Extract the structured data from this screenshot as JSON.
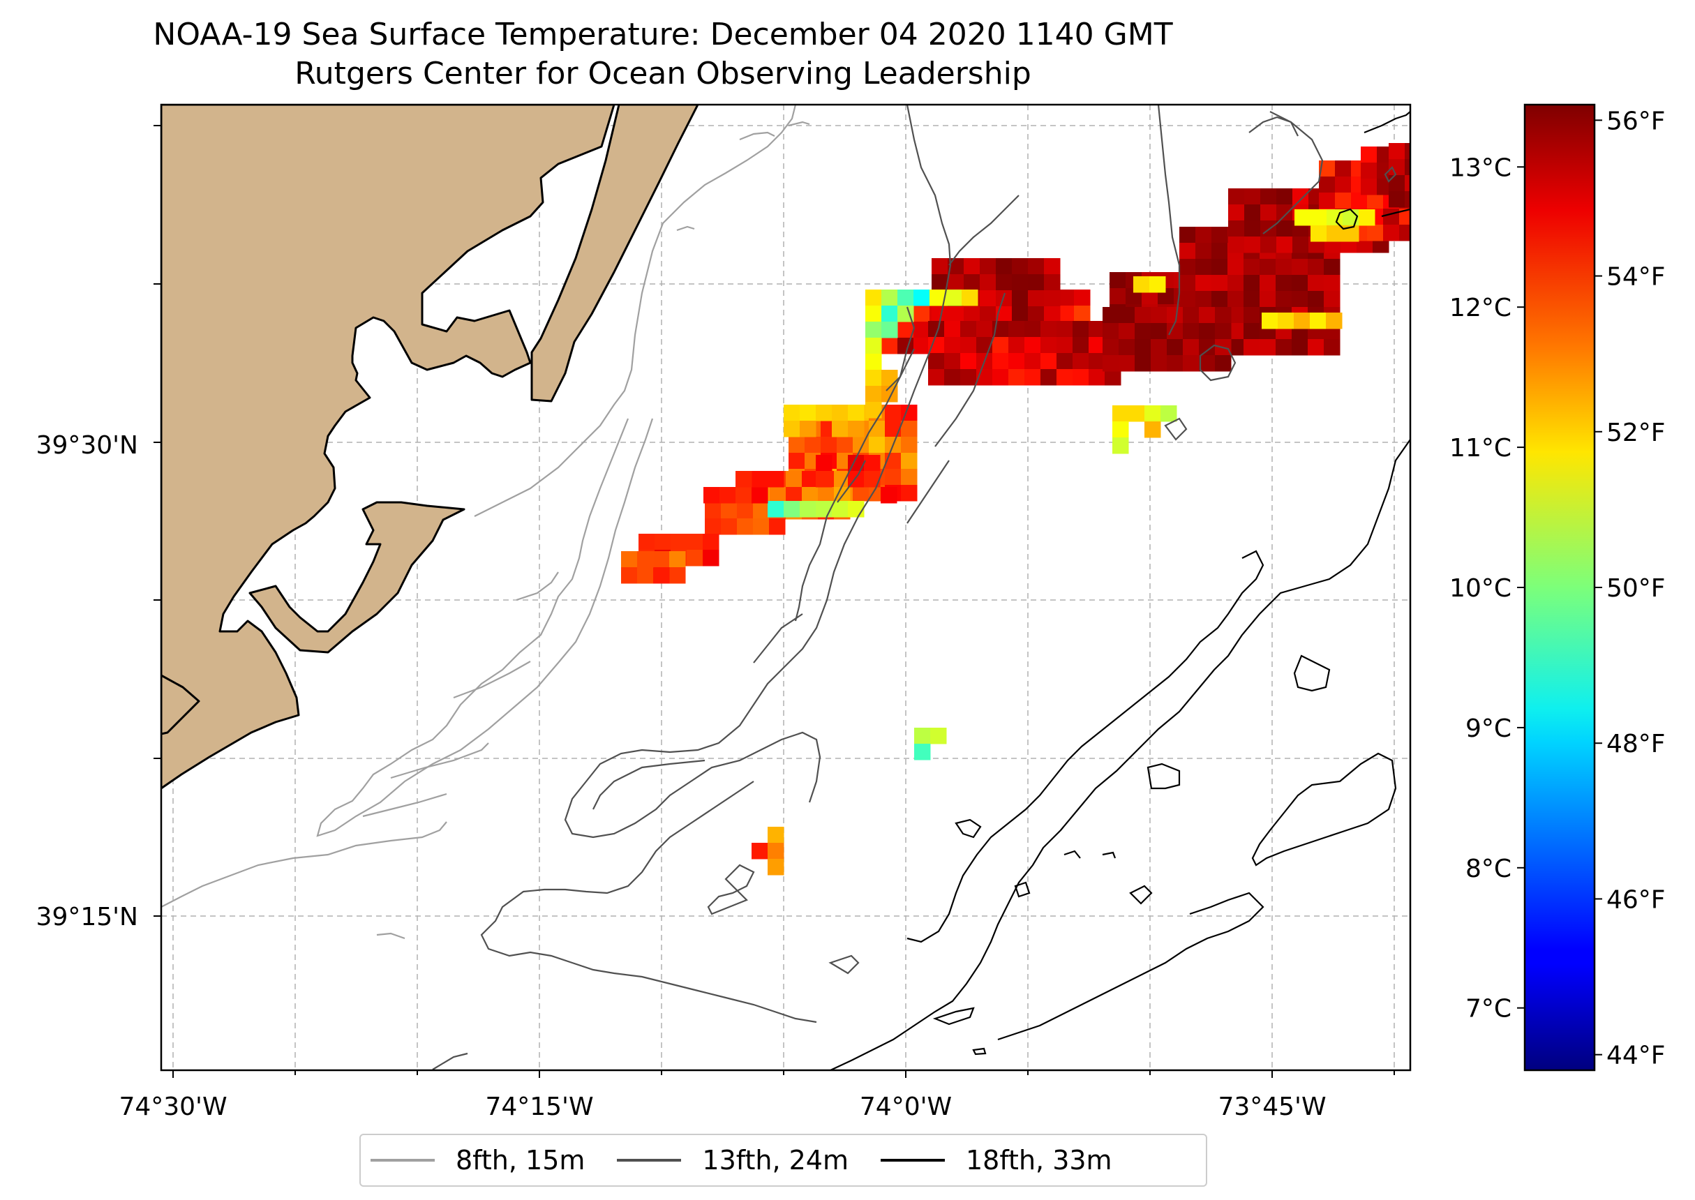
{
  "title": "NOAA-19 Sea Surface Temperature: December 04 2020 1140 GMT",
  "subtitle": "Rutgers Center for Ocean Observing Leadership",
  "x_axis": {
    "ticks": [
      {
        "label": "74°30'W",
        "lon": -74.5
      },
      {
        "label": "74°15'W",
        "lon": -74.25
      },
      {
        "label": "74°0'W",
        "lon": -74.0
      },
      {
        "label": "73°45'W",
        "lon": -73.75
      }
    ],
    "range": [
      -74.507,
      -73.66
    ]
  },
  "y_axis": {
    "ticks": [
      {
        "label": "39°30'N",
        "lat": 39.5
      },
      {
        "label": "39°15'N",
        "lat": 39.25
      }
    ],
    "range": [
      39.17,
      39.68
    ]
  },
  "colorbar": {
    "colormap": "jet",
    "range_f": [
      43.8,
      56.2
    ],
    "celsius_ticks": [
      "7°C",
      "8°C",
      "9°C",
      "10°C",
      "11°C",
      "12°C",
      "13°C"
    ],
    "fahrenheit_ticks": [
      "44°F",
      "46°F",
      "48°F",
      "50°F",
      "52°F",
      "54°F",
      "56°F"
    ]
  },
  "legend": {
    "placement": "bottom-center",
    "items": [
      {
        "label": "8fth, 15m",
        "color": "#a0a0a0"
      },
      {
        "label": "13fth, 24m",
        "color": "#505050"
      },
      {
        "label": "18fth, 33m",
        "color": "#000000"
      }
    ]
  },
  "colors": {
    "land": "#d2b48c",
    "grid": "#b0b0b0"
  }
}
